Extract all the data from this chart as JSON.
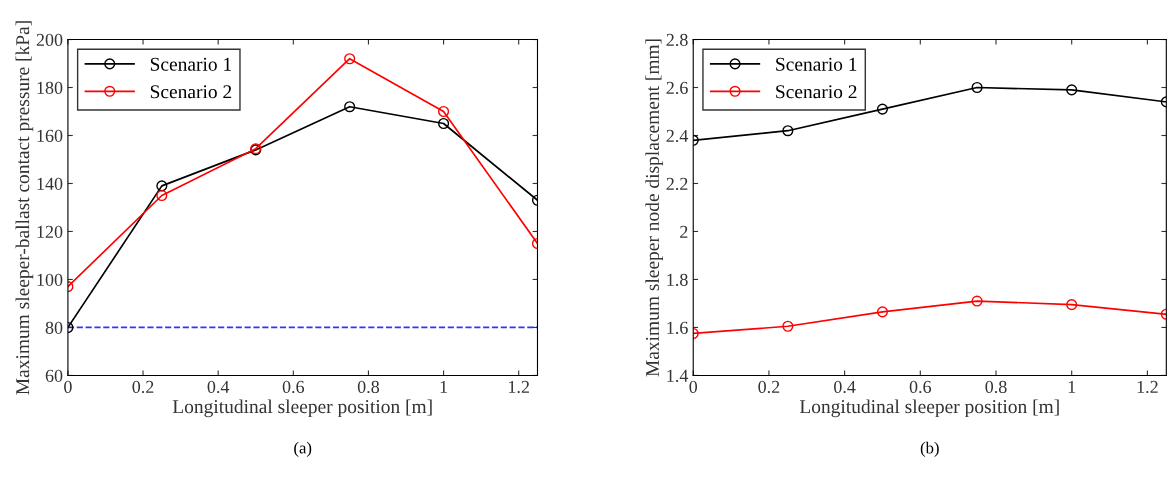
{
  "chart_data": [
    {
      "type": "line",
      "x": [
        0,
        0.25,
        0.5,
        0.75,
        1,
        1.25
      ],
      "xlabel": "Longitudinal sleeper position [m]",
      "ylabel": "Maximum sleeper-ballast contact pressure [kPa]",
      "series": [
        {
          "name": "Scenario 1",
          "color": "#000000",
          "values": [
            80,
            139,
            154,
            172,
            165,
            133
          ]
        },
        {
          "name": "Scenario 2",
          "color": "#ff0000",
          "values": [
            97,
            135,
            154.5,
            192,
            170,
            115
          ]
        }
      ],
      "xlim": [
        0,
        1.25
      ],
      "xticks": [
        0,
        0.2,
        0.4,
        0.6,
        0.8,
        1,
        1.2
      ],
      "ylim": [
        60,
        200
      ],
      "yticks": [
        60,
        80,
        100,
        120,
        140,
        160,
        180,
        200
      ],
      "ref_lines": [
        {
          "axis": "y",
          "value": 80,
          "color": "#3333ff",
          "line_style": "dashed"
        }
      ],
      "marker": "circle",
      "line_style": "solid",
      "legend": "top left",
      "grid": false,
      "annotations": [
        "(a)"
      ]
    },
    {
      "type": "line",
      "x": [
        0,
        0.25,
        0.5,
        0.75,
        1,
        1.25
      ],
      "xlabel": "Longitudinal sleeper position [m]",
      "ylabel": "Maximum sleeper node displacement [mm]",
      "series": [
        {
          "name": "Scenario 1",
          "color": "#000000",
          "values": [
            2.38,
            2.42,
            2.51,
            2.6,
            2.59,
            2.54
          ]
        },
        {
          "name": "Scenario 2",
          "color": "#ff0000",
          "values": [
            1.575,
            1.605,
            1.665,
            1.71,
            1.695,
            1.655
          ]
        }
      ],
      "xlim": [
        0,
        1.25
      ],
      "xticks": [
        0,
        0.2,
        0.4,
        0.6,
        0.8,
        1,
        1.2
      ],
      "ylim": [
        1.4,
        2.8
      ],
      "yticks": [
        1.4,
        1.6,
        1.8,
        2,
        2.2,
        2.4,
        2.6,
        2.8
      ],
      "marker": "circle",
      "line_style": "solid",
      "legend": "top left",
      "grid": false,
      "annotations": [
        "(b)"
      ]
    }
  ]
}
